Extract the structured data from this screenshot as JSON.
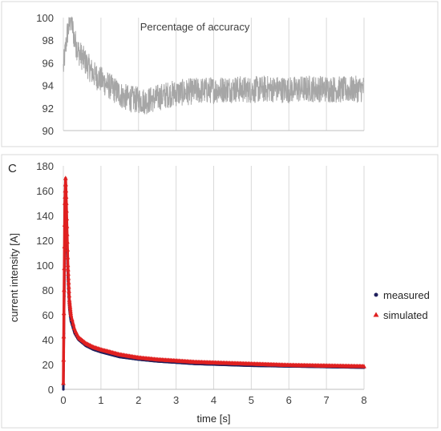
{
  "chart_data": [
    {
      "type": "line",
      "title": "Percentage of accuracy",
      "panel_label": "",
      "xlabel": "",
      "ylabel": "",
      "xlim": [
        0,
        8
      ],
      "ylim": [
        90,
        100
      ],
      "y_ticks": [
        "90",
        "92",
        "94",
        "96",
        "98",
        "100"
      ],
      "x_tick_labels_shown": false,
      "grid": "vertical",
      "legend": "none",
      "colors": {
        "series": "#a6a6a6",
        "grid": "#d9d9d9",
        "axis": "#bfbfbf"
      },
      "series": [
        {
          "name": "",
          "color": "#a6a6a6",
          "points": [
            [
              0.0,
              95.5
            ],
            [
              0.1,
              98.5
            ],
            [
              0.2,
              100.0
            ],
            [
              0.3,
              98.0
            ],
            [
              0.4,
              97.0
            ],
            [
              0.5,
              96.5
            ],
            [
              0.6,
              96.0
            ],
            [
              0.8,
              95.0
            ],
            [
              1.0,
              94.5
            ],
            [
              1.2,
              94.0
            ],
            [
              1.4,
              93.5
            ],
            [
              1.6,
              93.0
            ],
            [
              1.8,
              92.8
            ],
            [
              2.0,
              92.7
            ],
            [
              2.2,
              92.6
            ],
            [
              2.4,
              92.8
            ],
            [
              2.6,
              93.0
            ],
            [
              2.8,
              93.2
            ],
            [
              3.0,
              93.3
            ],
            [
              3.5,
              93.5
            ],
            [
              4.0,
              93.6
            ],
            [
              4.5,
              93.7
            ],
            [
              5.0,
              93.6
            ],
            [
              5.5,
              93.7
            ],
            [
              6.0,
              93.6
            ],
            [
              6.5,
              93.7
            ],
            [
              7.0,
              93.7
            ],
            [
              7.5,
              93.6
            ],
            [
              8.0,
              93.7
            ]
          ],
          "noise_band": 1.2
        }
      ]
    },
    {
      "type": "scatter",
      "title": "",
      "panel_label": "C",
      "xlabel": "time [s]",
      "ylabel": "current intensity [A]",
      "xlim": [
        0,
        8
      ],
      "ylim": [
        0,
        180
      ],
      "x_ticks": [
        "0",
        "1",
        "2",
        "3",
        "4",
        "5",
        "6",
        "7",
        "8"
      ],
      "y_ticks": [
        "0",
        "20",
        "40",
        "60",
        "80",
        "100",
        "120",
        "140",
        "160",
        "180"
      ],
      "grid": "vertical",
      "legend": "right",
      "colors": {
        "grid": "#d9d9d9",
        "axis": "#bfbfbf"
      },
      "series": [
        {
          "name": "measured",
          "color": "#1f1f5c",
          "marker": "circle",
          "points": [
            [
              0.0,
              0
            ],
            [
              0.02,
              60
            ],
            [
              0.04,
              120
            ],
            [
              0.06,
              155
            ],
            [
              0.08,
              135
            ],
            [
              0.12,
              90
            ],
            [
              0.16,
              65
            ],
            [
              0.2,
              55
            ],
            [
              0.3,
              45
            ],
            [
              0.4,
              40
            ],
            [
              0.6,
              35
            ],
            [
              0.8,
              32
            ],
            [
              1.0,
              30
            ],
            [
              1.5,
              26
            ],
            [
              2.0,
              24
            ],
            [
              2.5,
              22.5
            ],
            [
              3.0,
              21.5
            ],
            [
              3.5,
              20.5
            ],
            [
              4.0,
              20
            ],
            [
              5.0,
              19
            ],
            [
              6.0,
              18.5
            ],
            [
              7.0,
              18
            ],
            [
              8.0,
              17.5
            ]
          ]
        },
        {
          "name": "simulated",
          "color": "#e02020",
          "marker": "triangle",
          "points": [
            [
              0.0,
              5
            ],
            [
              0.02,
              80
            ],
            [
              0.04,
              150
            ],
            [
              0.06,
              170
            ],
            [
              0.08,
              150
            ],
            [
              0.12,
              100
            ],
            [
              0.16,
              72
            ],
            [
              0.2,
              60
            ],
            [
              0.3,
              48
            ],
            [
              0.4,
              42
            ],
            [
              0.6,
              37
            ],
            [
              0.8,
              34
            ],
            [
              1.0,
              32
            ],
            [
              1.5,
              28
            ],
            [
              2.0,
              25.5
            ],
            [
              2.5,
              24
            ],
            [
              3.0,
              23
            ],
            [
              3.5,
              22
            ],
            [
              4.0,
              21.5
            ],
            [
              5.0,
              20.5
            ],
            [
              6.0,
              19.5
            ],
            [
              7.0,
              19
            ],
            [
              8.0,
              18.5
            ]
          ]
        }
      ]
    }
  ]
}
